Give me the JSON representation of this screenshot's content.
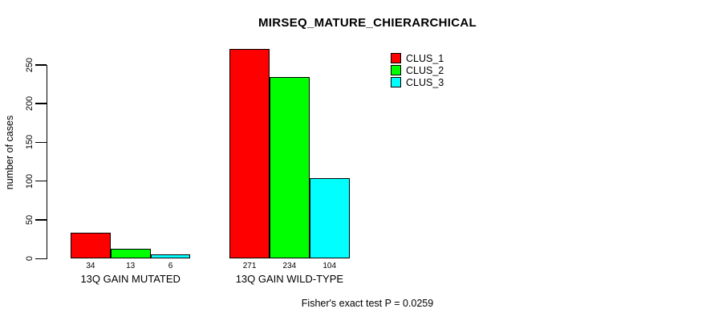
{
  "chart_data": {
    "type": "bar",
    "title": "MIRSEQ_MATURE_CHIERARCHICAL",
    "ylabel": "number of cases",
    "xlabel": "",
    "categories": [
      "13Q GAIN MUTATED",
      "13Q GAIN WILD-TYPE"
    ],
    "series": [
      {
        "name": "CLUS_1",
        "color": "#ff0000",
        "values": [
          34,
          271
        ]
      },
      {
        "name": "CLUS_2",
        "color": "#00ff00",
        "values": [
          13,
          234
        ]
      },
      {
        "name": "CLUS_3",
        "color": "#00ffff",
        "values": [
          6,
          104
        ]
      }
    ],
    "value_labels": [
      [
        "34",
        "13",
        "6"
      ],
      [
        "271",
        "234",
        "104"
      ]
    ],
    "yticks": [
      "0",
      "50",
      "100",
      "150",
      "200",
      "250"
    ],
    "ylim": [
      0,
      250
    ],
    "grid": false,
    "legend_position": "top-right",
    "bar_border_color": "#000000",
    "background": "#ffffff",
    "annotation": "Fisher's exact test P = 0.0259"
  }
}
